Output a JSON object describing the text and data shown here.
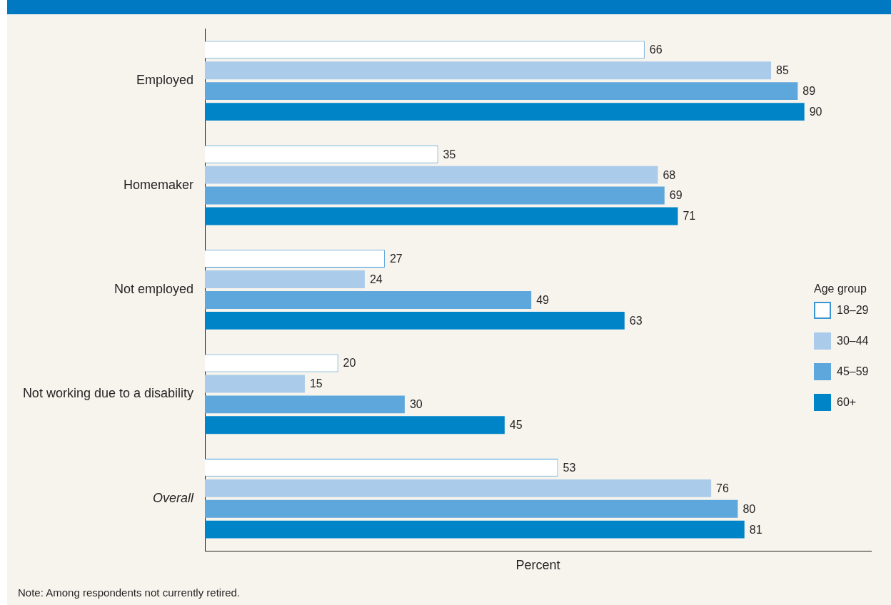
{
  "chart_data": {
    "type": "bar",
    "orientation": "horizontal",
    "categories": [
      "Employed",
      "Homemaker",
      "Not employed",
      "Not working due to a disability",
      "Overall"
    ],
    "series": [
      {
        "name": "18–29",
        "color": "#ffffff",
        "values": [
          66,
          35,
          27,
          20,
          53
        ]
      },
      {
        "name": "30–44",
        "color": "#abcbea",
        "values": [
          85,
          68,
          24,
          15,
          76
        ]
      },
      {
        "name": "45–59",
        "color": "#5ea7dc",
        "values": [
          89,
          69,
          49,
          30,
          80
        ]
      },
      {
        "name": "60+",
        "color": "#0084c8",
        "values": [
          90,
          71,
          63,
          45,
          81
        ]
      }
    ],
    "xlim": [
      0,
      100
    ],
    "xlabel": "Percent",
    "legend_title": "Age group",
    "legend": "right",
    "tick_labels": "y",
    "data_labels": true,
    "annotations": [
      "Note: Among respondents not currently retired."
    ]
  }
}
